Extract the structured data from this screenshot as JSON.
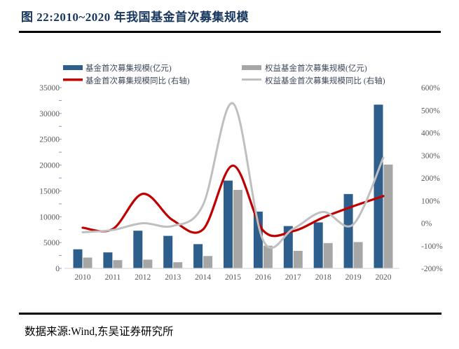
{
  "header": {
    "title": "图 22:2010~2020 年我国基金首次募集规模"
  },
  "footer": {
    "source": "数据来源:Wind,东吴证券研究所"
  },
  "chart_data": {
    "type": "combo-bar-line",
    "title": "2010~2020 年我国基金首次募集规模",
    "categories": [
      "2010",
      "2011",
      "2012",
      "2013",
      "2014",
      "2015",
      "2016",
      "2017",
      "2018",
      "2019",
      "2020"
    ],
    "series": [
      {
        "name": "基金首次募集规模(亿元)",
        "type": "bar",
        "axis": "left",
        "color": "#2E5F8C",
        "values": [
          3700,
          3100,
          7300,
          6300,
          4700,
          17000,
          11000,
          8200,
          8900,
          14400,
          31700
        ]
      },
      {
        "name": "权益基金首次募集规模(亿元)",
        "type": "bar",
        "axis": "left",
        "color": "#A6A6A6",
        "values": [
          2100,
          1600,
          1700,
          1200,
          2400,
          15200,
          4400,
          3400,
          4900,
          5100,
          20100
        ]
      },
      {
        "name": "基金首次募集规模同比 (右轴)",
        "type": "line",
        "axis": "right",
        "color": "#C00000",
        "values": [
          -20,
          -26,
          130,
          13,
          -28,
          255,
          -32,
          -35,
          25,
          75,
          120
        ]
      },
      {
        "name": "权益基金首次募集规模同比 (右轴)",
        "type": "line",
        "axis": "right",
        "color": "#BFBFBF",
        "values": [
          -40,
          -30,
          0,
          -12,
          80,
          530,
          -75,
          -25,
          50,
          -5,
          290
        ]
      }
    ],
    "left_axis": {
      "min": 0,
      "max": 35000,
      "step": 5000,
      "ticks": [
        "0",
        "5000",
        "10000",
        "15000",
        "20000",
        "25000",
        "30000",
        "35000"
      ]
    },
    "right_axis": {
      "min": -200,
      "max": 600,
      "step": 100,
      "ticks": [
        "-200%",
        "-100%",
        "0%",
        "100%",
        "200%",
        "300%",
        "400%",
        "500%",
        "600%"
      ]
    },
    "grid": false,
    "legend_position": "top",
    "xlabel": "",
    "ylabel_left": "亿元",
    "ylabel_right": "%"
  },
  "style": {
    "title_color": "#17375e",
    "axis_text_color": "#595959",
    "axis_line_color": "#D9D9D9",
    "tick_mark_color": "#7F9CC9",
    "rule_color": "#000000"
  }
}
